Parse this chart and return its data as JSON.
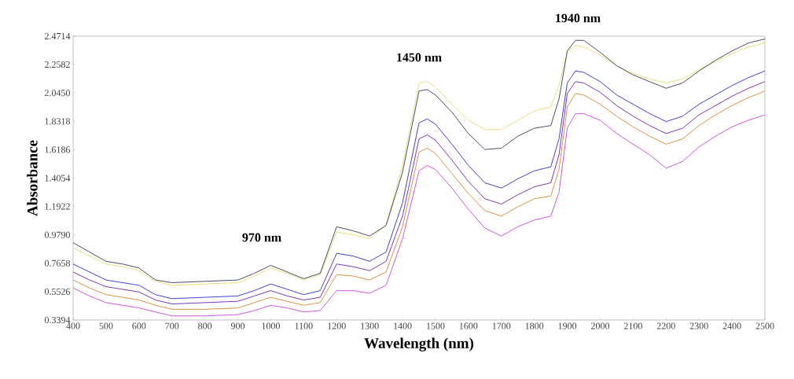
{
  "chart_data": {
    "type": "line",
    "xlabel": "Wavelength  (nm)",
    "ylabel": "Absorbance",
    "annotations": [
      "970 nm",
      "1450 nm",
      "1940 nm"
    ],
    "x": [
      400,
      450,
      500,
      550,
      600,
      650,
      700,
      800,
      900,
      950,
      1000,
      1050,
      1100,
      1150,
      1200,
      1250,
      1300,
      1350,
      1400,
      1450,
      1475,
      1500,
      1550,
      1600,
      1650,
      1700,
      1750,
      1800,
      1850,
      1875,
      1900,
      1925,
      1950,
      2000,
      2050,
      2100,
      2150,
      2200,
      2250,
      2300,
      2350,
      2400,
      2450,
      2500
    ],
    "series": [
      {
        "color": "#e6dc6a",
        "values": [
          0.88,
          0.82,
          0.76,
          0.74,
          0.71,
          0.63,
          0.6,
          0.61,
          0.62,
          0.67,
          0.73,
          0.69,
          0.64,
          0.68,
          1.0,
          0.98,
          0.95,
          1.05,
          1.5,
          2.12,
          2.13,
          2.09,
          1.96,
          1.84,
          1.77,
          1.77,
          1.84,
          1.91,
          1.94,
          2.1,
          2.35,
          2.4,
          2.39,
          2.33,
          2.25,
          2.19,
          2.15,
          2.12,
          2.15,
          2.22,
          2.28,
          2.34,
          2.39,
          2.42
        ]
      },
      {
        "color": "#3a3a55",
        "values": [
          0.92,
          0.85,
          0.78,
          0.76,
          0.73,
          0.64,
          0.62,
          0.63,
          0.64,
          0.69,
          0.75,
          0.7,
          0.65,
          0.69,
          1.04,
          1.01,
          0.97,
          1.05,
          1.45,
          2.06,
          2.07,
          2.03,
          1.9,
          1.74,
          1.62,
          1.63,
          1.72,
          1.78,
          1.8,
          2.0,
          2.36,
          2.44,
          2.44,
          2.35,
          2.25,
          2.18,
          2.13,
          2.08,
          2.12,
          2.21,
          2.29,
          2.36,
          2.42,
          2.45
        ]
      },
      {
        "color": "#2b2bd0",
        "values": [
          0.76,
          0.7,
          0.64,
          0.62,
          0.6,
          0.53,
          0.5,
          0.51,
          0.52,
          0.56,
          0.61,
          0.57,
          0.53,
          0.56,
          0.84,
          0.82,
          0.78,
          0.85,
          1.22,
          1.82,
          1.85,
          1.81,
          1.66,
          1.5,
          1.37,
          1.33,
          1.4,
          1.46,
          1.49,
          1.7,
          2.12,
          2.21,
          2.2,
          2.13,
          2.03,
          1.96,
          1.89,
          1.83,
          1.87,
          1.96,
          2.03,
          2.1,
          2.16,
          2.21
        ]
      },
      {
        "color": "#7020b0",
        "values": [
          0.7,
          0.64,
          0.59,
          0.57,
          0.55,
          0.49,
          0.46,
          0.47,
          0.48,
          0.52,
          0.56,
          0.52,
          0.49,
          0.51,
          0.76,
          0.74,
          0.71,
          0.78,
          1.12,
          1.7,
          1.73,
          1.69,
          1.54,
          1.38,
          1.25,
          1.21,
          1.28,
          1.34,
          1.37,
          1.58,
          2.04,
          2.13,
          2.12,
          2.05,
          1.95,
          1.87,
          1.8,
          1.74,
          1.78,
          1.88,
          1.95,
          2.02,
          2.08,
          2.13
        ]
      },
      {
        "color": "#d9862e",
        "values": [
          0.64,
          0.58,
          0.53,
          0.51,
          0.49,
          0.45,
          0.42,
          0.42,
          0.43,
          0.47,
          0.51,
          0.48,
          0.45,
          0.47,
          0.68,
          0.67,
          0.64,
          0.7,
          1.04,
          1.6,
          1.63,
          1.59,
          1.44,
          1.29,
          1.16,
          1.12,
          1.19,
          1.25,
          1.27,
          1.47,
          1.94,
          2.04,
          2.03,
          1.96,
          1.87,
          1.79,
          1.72,
          1.66,
          1.7,
          1.8,
          1.88,
          1.95,
          2.01,
          2.06
        ]
      },
      {
        "color": "#cc44dd",
        "values": [
          0.58,
          0.52,
          0.47,
          0.45,
          0.43,
          0.4,
          0.37,
          0.37,
          0.38,
          0.41,
          0.45,
          0.43,
          0.4,
          0.41,
          0.56,
          0.56,
          0.54,
          0.6,
          0.95,
          1.46,
          1.5,
          1.47,
          1.33,
          1.17,
          1.03,
          0.97,
          1.04,
          1.09,
          1.12,
          1.3,
          1.78,
          1.89,
          1.89,
          1.84,
          1.74,
          1.66,
          1.58,
          1.48,
          1.53,
          1.64,
          1.72,
          1.79,
          1.84,
          1.88
        ]
      }
    ],
    "xlim": [
      400,
      2500
    ],
    "xticks": [
      400,
      500,
      600,
      700,
      800,
      900,
      1000,
      1100,
      1200,
      1300,
      1400,
      1500,
      1600,
      1700,
      1800,
      1900,
      2000,
      2100,
      2200,
      2300,
      2400,
      2500
    ],
    "ylim": [
      0.3394,
      2.4714
    ],
    "yticks": [
      0.3394,
      0.5526,
      0.7658,
      {
        "value": 0.979,
        "label": "0.9790"
      },
      1.1922,
      1.4054,
      1.6186,
      1.8318,
      {
        "value": 2.045,
        "label": "2.0450"
      },
      2.2582,
      2.4714
    ],
    "grid": false,
    "marker": "none",
    "line_style": "solid"
  }
}
